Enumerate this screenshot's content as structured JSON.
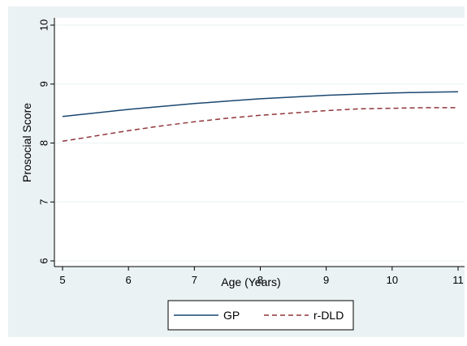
{
  "chart_data": {
    "type": "line",
    "title": "",
    "xlabel": "Age (Years)",
    "ylabel": "Prosocial Score",
    "xlim": [
      5,
      11
    ],
    "ylim": [
      6,
      10
    ],
    "x_ticks": [
      5,
      6,
      7,
      8,
      9,
      10,
      11
    ],
    "y_ticks": [
      6,
      7,
      8,
      9,
      10
    ],
    "grid": "horizontal",
    "legend_position": "bottom",
    "background": "#eaf2f3",
    "series": [
      {
        "name": "GP",
        "color": "#1a476f",
        "dash": "solid",
        "x": [
          5,
          5.5,
          6,
          6.5,
          7,
          7.5,
          8,
          8.5,
          9,
          9.5,
          10,
          10.5,
          11
        ],
        "values": [
          8.45,
          8.51,
          8.57,
          8.62,
          8.67,
          8.71,
          8.75,
          8.78,
          8.81,
          8.83,
          8.85,
          8.86,
          8.87
        ]
      },
      {
        "name": "r-DLD",
        "color": "#90353b",
        "dash": "dashed",
        "x": [
          5,
          5.5,
          6,
          6.5,
          7,
          7.5,
          8,
          8.5,
          9,
          9.5,
          10,
          10.5,
          11
        ],
        "values": [
          8.03,
          8.12,
          8.21,
          8.29,
          8.36,
          8.42,
          8.47,
          8.51,
          8.55,
          8.58,
          8.59,
          8.6,
          8.6
        ]
      }
    ]
  }
}
